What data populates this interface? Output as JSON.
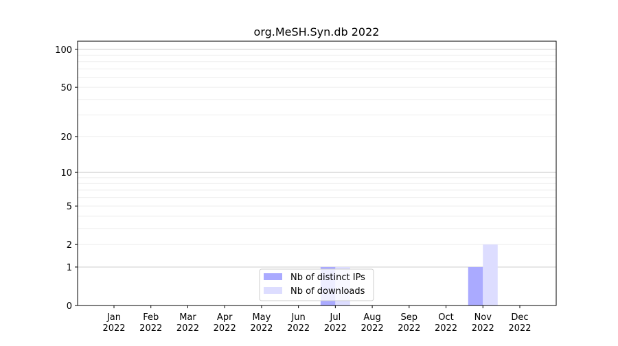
{
  "chart_data": {
    "type": "bar",
    "title": "org.MeSH.Syn.db 2022",
    "xlabel": "",
    "ylabel": "",
    "y_scale": "log(1+x)",
    "ylim": [
      0,
      116
    ],
    "y_ticks": [
      0,
      1,
      2,
      5,
      10,
      20,
      50,
      100
    ],
    "grid": true,
    "legend_placement": "lower-center",
    "categories": [
      "Jan\n2022",
      "Feb\n2022",
      "Mar\n2022",
      "Apr\n2022",
      "May\n2022",
      "Jun\n2022",
      "Jul\n2022",
      "Aug\n2022",
      "Sep\n2022",
      "Oct\n2022",
      "Nov\n2022",
      "Dec\n2022"
    ],
    "series": [
      {
        "name": "Nb of distinct IPs",
        "color": "#aaaaff",
        "values": [
          0,
          0,
          0,
          0,
          0,
          0,
          1,
          0,
          0,
          0,
          1,
          0
        ]
      },
      {
        "name": "Nb of downloads",
        "color": "#ddddff",
        "values": [
          0,
          0,
          0,
          0,
          0,
          0,
          1,
          0,
          0,
          0,
          2,
          0
        ]
      }
    ]
  }
}
